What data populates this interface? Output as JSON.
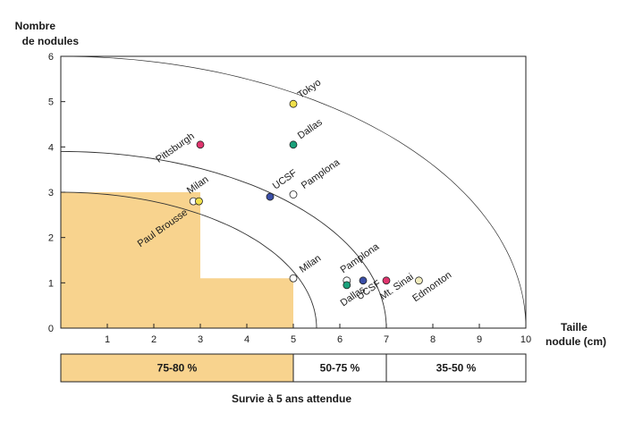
{
  "chart_data": {
    "type": "scatter",
    "ylabel_line1": "Nombre",
    "ylabel_line2": "de nodules",
    "xlabel_line1": "Taille",
    "xlabel_line2": "nodule (cm)",
    "xlim": [
      0,
      10
    ],
    "ylim": [
      0,
      6
    ],
    "x_ticks": [
      "1",
      "2",
      "3",
      "4",
      "5",
      "6",
      "7",
      "8",
      "9",
      "10"
    ],
    "y_ticks": [
      "0",
      "1",
      "2",
      "3",
      "4",
      "5",
      "6"
    ],
    "shaded_region": [
      [
        0,
        0
      ],
      [
        5,
        0
      ],
      [
        5,
        1.1
      ],
      [
        3,
        1.1
      ],
      [
        3,
        3
      ],
      [
        0,
        3
      ],
      [
        0,
        0
      ]
    ],
    "curves": [
      {
        "x_end": 5.5,
        "y_start": 3
      },
      {
        "x_end": 7,
        "y_start": 3.9
      },
      {
        "x_end": 10,
        "y_start": 6
      }
    ],
    "points": [
      {
        "label": "Tokyo",
        "x": 5,
        "y": 4.95,
        "color": "#f0e04a"
      },
      {
        "label": "Dallas",
        "x": 5,
        "y": 4.05,
        "color": "#1aa07a"
      },
      {
        "label": "Pittsburgh",
        "x": 3,
        "y": 4.05,
        "color": "#e0356e"
      },
      {
        "label": "UCSF",
        "x": 4.5,
        "y": 2.9,
        "color": "#3b4fa8"
      },
      {
        "label": "Pamplona",
        "x": 5,
        "y": 2.95,
        "color": "#ffffff"
      },
      {
        "label": "Milan",
        "x": 2.85,
        "y": 2.8,
        "color": "#ffffff"
      },
      {
        "label": "Paul Brousse",
        "x": 2.97,
        "y": 2.8,
        "color": "#f0e04a"
      },
      {
        "label": "Milan",
        "x": 5,
        "y": 1.1,
        "color": "#ffffff"
      },
      {
        "label": "Pamplona",
        "x": 6.15,
        "y": 1.05,
        "color": "#ffffff"
      },
      {
        "label": "Dallas",
        "x": 6.15,
        "y": 0.95,
        "color": "#1aa07a"
      },
      {
        "label": "UCSF",
        "x": 6.5,
        "y": 1.05,
        "color": "#3b4fa8"
      },
      {
        "label": "Mt. Sinai",
        "x": 7,
        "y": 1.05,
        "color": "#e0356e"
      },
      {
        "label": "Edmonton",
        "x": 7.7,
        "y": 1.05,
        "color": "#f2edbf"
      }
    ],
    "bands": [
      {
        "label": "75-80 %",
        "from": 0,
        "to": 5,
        "color": "#f8d38e"
      },
      {
        "label": "50-75 %",
        "from": 5,
        "to": 7,
        "color": "#ffffff"
      },
      {
        "label": "35-50 %",
        "from": 7,
        "to": 10,
        "color": "#ffffff"
      }
    ],
    "caption": "Survie à 5 ans attendue",
    "shade_color": "#f8d38e"
  }
}
